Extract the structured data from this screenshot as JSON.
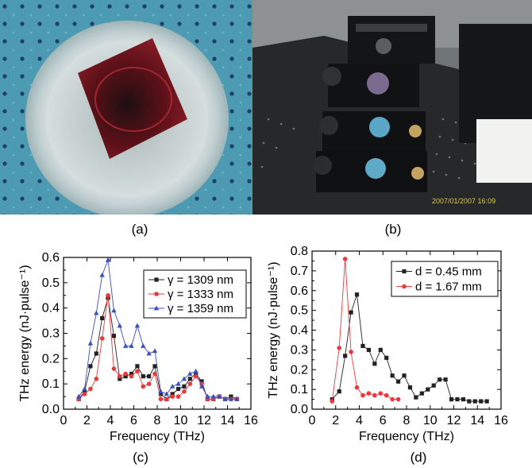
{
  "panels": {
    "a": {
      "label": "(a)"
    },
    "b": {
      "label": "(b)",
      "timestamp": "2007/01/2007 16:09"
    },
    "c": {
      "label": "(c)"
    },
    "d": {
      "label": "(d)"
    }
  },
  "colors": {
    "black": "#222222",
    "red": "#e8393b",
    "blue": "#3a4fc0",
    "sample_red": "#7a1420",
    "table_blue": "#3d8fa8"
  },
  "chart_data": [
    {
      "type": "line",
      "panel": "c",
      "xlabel": "Frequency (THz)",
      "ylabel": "THz energy (nJ·pulse⁻¹)",
      "xlim": [
        0,
        16
      ],
      "ylim": [
        0,
        0.6
      ],
      "xticks": [
        0,
        2,
        4,
        6,
        8,
        10,
        12,
        14,
        16
      ],
      "yticks": [
        0.0,
        0.1,
        0.2,
        0.3,
        0.4,
        0.5,
        0.6
      ],
      "legend_position": "top-right",
      "series": [
        {
          "name": "γ = 1309 nm",
          "color": "#222222",
          "marker": "square",
          "x": [
            1.3,
            1.8,
            2.3,
            2.8,
            3.3,
            3.8,
            4.3,
            4.8,
            5.3,
            5.8,
            6.3,
            6.8,
            7.3,
            7.8,
            8.3,
            8.8,
            9.3,
            9.8,
            10.3,
            10.8,
            11.3,
            11.8,
            12.3,
            12.8,
            13.3,
            13.8,
            14.3,
            14.8
          ],
          "y": [
            0.04,
            0.07,
            0.17,
            0.22,
            0.36,
            0.44,
            0.29,
            0.12,
            0.13,
            0.14,
            0.17,
            0.13,
            0.13,
            0.17,
            0.06,
            0.04,
            0.06,
            0.08,
            0.09,
            0.12,
            0.14,
            0.11,
            0.04,
            0.04,
            0.05,
            0.04,
            0.05,
            0.04
          ]
        },
        {
          "name": "γ = 1333 nm",
          "color": "#e8393b",
          "marker": "circle",
          "x": [
            1.3,
            1.8,
            2.3,
            2.8,
            3.3,
            3.8,
            4.3,
            4.8,
            5.3,
            5.8,
            6.3,
            6.8,
            7.3,
            7.8,
            8.3,
            8.8,
            9.3,
            9.8,
            10.3,
            10.8,
            11.3,
            11.8,
            12.3,
            12.8,
            13.3,
            13.8,
            14.3,
            14.8
          ],
          "y": [
            0.04,
            0.06,
            0.08,
            0.12,
            0.28,
            0.45,
            0.16,
            0.13,
            0.14,
            0.13,
            0.15,
            0.09,
            0.1,
            0.14,
            0.04,
            0.04,
            0.05,
            0.05,
            0.07,
            0.1,
            0.13,
            0.1,
            0.04,
            0.04,
            0.05,
            0.04,
            0.04,
            0.04
          ]
        },
        {
          "name": "γ = 1359 nm",
          "color": "#3a4fc0",
          "marker": "triangle",
          "x": [
            1.3,
            1.8,
            2.3,
            2.8,
            3.3,
            3.8,
            4.3,
            4.8,
            5.3,
            5.8,
            6.3,
            6.8,
            7.3,
            7.8,
            8.3,
            8.8,
            9.3,
            9.8,
            10.3,
            10.8,
            11.3,
            11.8,
            12.3,
            12.8,
            13.3,
            13.8,
            14.3,
            14.8
          ],
          "y": [
            0.05,
            0.08,
            0.26,
            0.38,
            0.53,
            0.59,
            0.39,
            0.33,
            0.25,
            0.25,
            0.33,
            0.25,
            0.22,
            0.23,
            0.07,
            0.06,
            0.09,
            0.1,
            0.12,
            0.14,
            0.15,
            0.09,
            0.05,
            0.05,
            0.05,
            0.04,
            0.04,
            0.04
          ]
        }
      ]
    },
    {
      "type": "line",
      "panel": "d",
      "xlabel": "Frequency (THz)",
      "ylabel": "THz energy (nJ·pulse⁻¹)",
      "xlim": [
        0,
        16
      ],
      "ylim": [
        0,
        0.8
      ],
      "xticks": [
        0,
        2,
        4,
        6,
        8,
        10,
        12,
        14,
        16
      ],
      "yticks": [
        0.0,
        0.1,
        0.2,
        0.3,
        0.4,
        0.5,
        0.6,
        0.7,
        0.8
      ],
      "legend_position": "top-right",
      "series": [
        {
          "name": "d = 0.45 mm",
          "color": "#222222",
          "marker": "square",
          "x": [
            1.7,
            2.3,
            2.8,
            3.3,
            3.8,
            4.3,
            4.8,
            5.3,
            5.8,
            6.3,
            6.8,
            7.3,
            7.8,
            8.3,
            8.8,
            9.3,
            9.8,
            10.3,
            10.8,
            11.3,
            11.8,
            12.3,
            12.8,
            13.3,
            13.8,
            14.3,
            14.8
          ],
          "y": [
            0.05,
            0.09,
            0.27,
            0.49,
            0.58,
            0.32,
            0.3,
            0.23,
            0.3,
            0.26,
            0.17,
            0.14,
            0.17,
            0.11,
            0.06,
            0.08,
            0.1,
            0.12,
            0.15,
            0.15,
            0.05,
            0.05,
            0.05,
            0.04,
            0.04,
            0.04,
            0.04
          ]
        },
        {
          "name": "d = 1.67 mm",
          "color": "#e8393b",
          "marker": "circle",
          "x": [
            1.7,
            2.3,
            2.8,
            3.3,
            3.8,
            4.3,
            4.8,
            5.3,
            5.8,
            6.3,
            6.8,
            7.3
          ],
          "y": [
            0.04,
            0.31,
            0.76,
            0.29,
            0.11,
            0.07,
            0.08,
            0.07,
            0.08,
            0.07,
            0.05,
            0.05
          ]
        }
      ]
    }
  ]
}
